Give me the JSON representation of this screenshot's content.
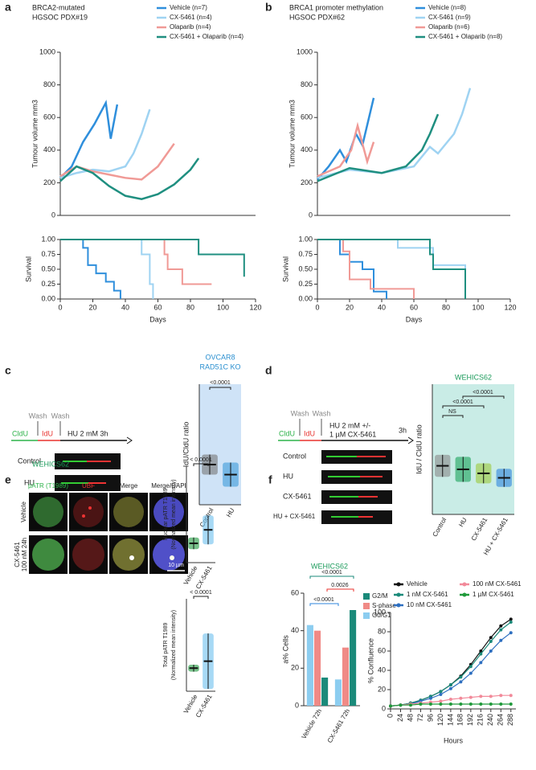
{
  "panel_labels": [
    "a",
    "b",
    "c",
    "d",
    "e",
    "f"
  ],
  "schematic_c": {
    "wash": [
      "Wash",
      "Wash"
    ],
    "cldu": "CldU",
    "idu": "IdU",
    "treatment": "HU 2 mM 3h",
    "rows": [
      "Control",
      "HU"
    ]
  },
  "schematic_d": {
    "wash": [
      "Wash",
      "Wash"
    ],
    "cldu": "CldU",
    "idu": "IdU",
    "treatment": [
      "HU 2 mM +/-",
      "1 µM CX-5461"
    ],
    "duration": "3h",
    "rows": [
      "Control",
      "HU",
      "CX-5461",
      "HU + CX-5461"
    ]
  },
  "micrographs": {
    "cell_line": "WEHICS62",
    "columns": [
      "pATR (T1989)",
      "UBF",
      "Merge",
      "Merge/DAPI"
    ],
    "rows": [
      [
        "Vehicle"
      ],
      [
        "CX-5461",
        "100 nM 24h"
      ]
    ],
    "scale_bar": "10 µm"
  },
  "chart_data": [
    {
      "type": "line",
      "title": "BRCA2-mutated",
      "subtitle": "HGSOC PDX#19",
      "ylabel": "Tumour volume mm3",
      "xlim": [
        0,
        120
      ],
      "ylim": [
        0,
        1000
      ],
      "yticks": [
        0,
        200,
        400,
        600,
        800,
        1000
      ],
      "series": [
        {
          "name": "Vehicle (n=7)",
          "color": "#2f8fdc",
          "x": [
            0,
            7,
            14,
            21,
            28,
            31,
            35
          ],
          "values": [
            230,
            300,
            450,
            560,
            690,
            470,
            680
          ]
        },
        {
          "name": "CX-5461 (n=4)",
          "color": "#9fd3f2",
          "x": [
            0,
            10,
            20,
            30,
            40,
            45,
            50,
            55
          ],
          "values": [
            230,
            260,
            280,
            270,
            300,
            380,
            500,
            650
          ]
        },
        {
          "name": "Olaparib (n=4)",
          "color": "#f09a96",
          "x": [
            0,
            10,
            20,
            30,
            40,
            50,
            60,
            70
          ],
          "values": [
            240,
            300,
            270,
            250,
            230,
            220,
            300,
            440
          ]
        },
        {
          "name": "CX-5461 + Olaparib (n=4)",
          "color": "#1f8f80",
          "x": [
            0,
            10,
            20,
            30,
            40,
            50,
            60,
            70,
            80,
            85
          ],
          "values": [
            210,
            300,
            260,
            180,
            120,
            100,
            130,
            190,
            280,
            350
          ]
        }
      ]
    },
    {
      "type": "step",
      "ylabel": "Survival",
      "xlabel": "Days",
      "xlim": [
        0,
        120
      ],
      "ylim": [
        0,
        1
      ],
      "xticks": [
        0,
        20,
        40,
        60,
        80,
        100,
        120
      ],
      "yticks": [
        {
          "value": 0,
          "label": "0.00"
        },
        {
          "value": 0.25,
          "label": "0.25"
        },
        {
          "value": 0.5,
          "label": "0.50"
        },
        {
          "value": 0.75,
          "label": "0.75"
        },
        {
          "value": 1,
          "label": "1.00"
        }
      ],
      "series": [
        {
          "color": "#2f8fdc",
          "x": [
            0,
            14,
            17,
            22,
            28,
            33,
            37
          ],
          "values": [
            1,
            0.86,
            0.57,
            0.43,
            0.29,
            0.14,
            0
          ]
        },
        {
          "color": "#9fd3f2",
          "x": [
            0,
            50,
            55,
            57
          ],
          "values": [
            1,
            0.75,
            0.25,
            0
          ]
        },
        {
          "color": "#f09a96",
          "x": [
            0,
            64,
            66,
            75,
            93
          ],
          "values": [
            1,
            0.75,
            0.5,
            0.25,
            0.25
          ]
        },
        {
          "color": "#1f8f80",
          "x": [
            0,
            85,
            113
          ],
          "values": [
            1,
            0.75,
            0.375
          ]
        }
      ]
    },
    {
      "type": "line",
      "title": "BRCA1 promoter methylation",
      "subtitle": "HGSOC PDX#62",
      "ylabel": "Tumour volume mm3",
      "xlim": [
        0,
        120
      ],
      "ylim": [
        0,
        1000
      ],
      "yticks": [
        0,
        200,
        400,
        600,
        800,
        1000
      ],
      "series": [
        {
          "name": "Vehicle (n=8)",
          "color": "#2f8fdc",
          "x": [
            0,
            7,
            14,
            18,
            24,
            28,
            35
          ],
          "values": [
            220,
            300,
            400,
            330,
            500,
            430,
            720
          ]
        },
        {
          "name": "CX-5461 (n=9)",
          "color": "#9fd3f2",
          "x": [
            0,
            20,
            40,
            60,
            70,
            75,
            85,
            90,
            95
          ],
          "values": [
            230,
            280,
            260,
            300,
            420,
            380,
            500,
            620,
            780
          ]
        },
        {
          "name": "Olaparib (n=6)",
          "color": "#f09a96",
          "x": [
            0,
            14,
            21,
            25,
            31,
            35
          ],
          "values": [
            240,
            300,
            400,
            550,
            330,
            450
          ]
        },
        {
          "name": "CX-5461 + Olaparib (n=8)",
          "color": "#1f8f80",
          "x": [
            0,
            20,
            40,
            55,
            65,
            70,
            75
          ],
          "values": [
            210,
            290,
            260,
            300,
            400,
            500,
            620
          ]
        }
      ]
    },
    {
      "type": "step",
      "ylabel": "Survival",
      "xlabel": "Days",
      "xlim": [
        0,
        120
      ],
      "ylim": [
        0,
        1
      ],
      "xticks": [
        0,
        20,
        40,
        60,
        80,
        100,
        120
      ],
      "yticks": [
        {
          "value": 0,
          "label": "0.00"
        },
        {
          "value": 0.25,
          "label": "0.25"
        },
        {
          "value": 0.5,
          "label": "0.50"
        },
        {
          "value": 0.75,
          "label": "0.75"
        },
        {
          "value": 1,
          "label": "1.00"
        }
      ],
      "series": [
        {
          "color": "#2f8fdc",
          "x": [
            0,
            14,
            20,
            28,
            35,
            43
          ],
          "values": [
            1,
            0.75,
            0.625,
            0.5,
            0.125,
            0
          ]
        },
        {
          "color": "#9fd3f2",
          "x": [
            0,
            50,
            72,
            92
          ],
          "values": [
            1,
            0.86,
            0.57,
            0
          ]
        },
        {
          "color": "#f09a96",
          "x": [
            0,
            16,
            20,
            33,
            60
          ],
          "values": [
            1,
            0.8,
            0.33,
            0.17,
            0
          ]
        },
        {
          "color": "#1f8f80",
          "x": [
            0,
            70,
            72,
            92
          ],
          "values": [
            1,
            0.75,
            0.5,
            0
          ]
        }
      ]
    },
    {
      "type": "dot",
      "title": "OVCAR8",
      "subtitle": "RAD51C KO",
      "ylabel": "IdU/CldU ratio",
      "categories": [
        "Control",
        "HU"
      ],
      "values": [
        1.0,
        0.75
      ],
      "errors": [
        0.25,
        0.3
      ],
      "colors": [
        "#777777",
        "#3a9ad9"
      ],
      "ylim": [
        0,
        3
      ],
      "background": "#cfe3f7",
      "annotations": [
        "<0.0001"
      ]
    },
    {
      "type": "dot",
      "title": "WEHICS62",
      "ylabel": "IdU / CldU ratio",
      "categories": [
        "Control",
        "HU",
        "CX-5461",
        "HU + CX-5461"
      ],
      "values": [
        0.97,
        0.9,
        0.82,
        0.73
      ],
      "errors": [
        0.22,
        0.25,
        0.2,
        0.18
      ],
      "colors": [
        "#888888",
        "#1aa35a",
        "#9cc93a",
        "#2e86de"
      ],
      "ylim": [
        0,
        2.6
      ],
      "background": "#c9ece6",
      "annotations": [
        "NS",
        "<0.0001",
        "<0.0001"
      ]
    },
    {
      "type": "dot",
      "ylabel": [
        "Nuclear pATR T1989",
        "(Normalized mean intensity)"
      ],
      "categories": [
        "Vehicle",
        "CX-5461"
      ],
      "values": [
        1.0,
        1.7
      ],
      "errors": [
        0.3,
        0.75
      ],
      "colors": [
        "#1e9a3e",
        "#6cc0ee"
      ],
      "ylim": [
        0,
        5
      ],
      "annotations": [
        "< 0.0001"
      ]
    },
    {
      "type": "dot",
      "ylabel": [
        "Total pATR T1989",
        "(Normalized mean intensity)"
      ],
      "categories": [
        "Vehicle",
        "CX-5461"
      ],
      "values": [
        1.0,
        1.3
      ],
      "errors": [
        0.15,
        1.2
      ],
      "colors": [
        "#1e9a3e",
        "#6cc0ee"
      ],
      "ylim": [
        0,
        4
      ],
      "annotations": [
        "< 0.0001"
      ]
    },
    {
      "type": "bar",
      "title": "WEHICS62",
      "ylabel": "a% Cells",
      "categories": [
        "Vehicle 72h",
        "CX-5461 72h"
      ],
      "ylim": [
        0,
        60
      ],
      "yticks": [
        0,
        20,
        40,
        60
      ],
      "series": [
        {
          "name": "G2/M",
          "color": "#1a8a7a",
          "values": [
            15,
            51
          ]
        },
        {
          "name": "S-phase",
          "color": "#f08a86",
          "values": [
            40,
            31
          ]
        },
        {
          "name": "G0/G1",
          "color": "#8ccdf0",
          "values": [
            43,
            14
          ]
        }
      ],
      "annotations": [
        "<0.0001",
        "0.0026",
        "<0.0001"
      ]
    },
    {
      "type": "line",
      "markers": true,
      "ylabel": "% Confluence",
      "xlabel": "Hours",
      "x": [
        0,
        24,
        48,
        72,
        96,
        120,
        144,
        168,
        192,
        216,
        240,
        264,
        288
      ],
      "xlim": [
        0,
        300
      ],
      "ylim": [
        0,
        100
      ],
      "yticks": [
        0,
        20,
        40,
        60,
        80,
        100
      ],
      "xticks": [
        0,
        24,
        48,
        72,
        96,
        120,
        144,
        168,
        192,
        216,
        240,
        264,
        288
      ],
      "series": [
        {
          "name": "Vehicle",
          "color": "#111111",
          "values": [
            3,
            4,
            6,
            9,
            13,
            18,
            25,
            34,
            46,
            60,
            74,
            86,
            93
          ]
        },
        {
          "name": "1 nM CX-5461",
          "color": "#1a8a7a",
          "values": [
            3,
            4,
            6,
            9,
            13,
            18,
            25,
            33,
            44,
            57,
            70,
            82,
            90
          ]
        },
        {
          "name": "10 nM CX-5461",
          "color": "#2e6fc0",
          "values": [
            3,
            4,
            5,
            8,
            11,
            15,
            21,
            28,
            37,
            48,
            60,
            71,
            79
          ]
        },
        {
          "name": "100 nM CX-5461",
          "color": "#f28a9a",
          "values": [
            3,
            4,
            5,
            6,
            7,
            8,
            10,
            11,
            12,
            13,
            13,
            14,
            14
          ]
        },
        {
          "name": "1 µM CX-5461",
          "color": "#1f9a3a",
          "values": [
            3,
            4,
            4,
            5,
            5,
            5,
            5,
            5,
            5,
            5,
            5,
            5,
            5
          ]
        }
      ]
    }
  ]
}
